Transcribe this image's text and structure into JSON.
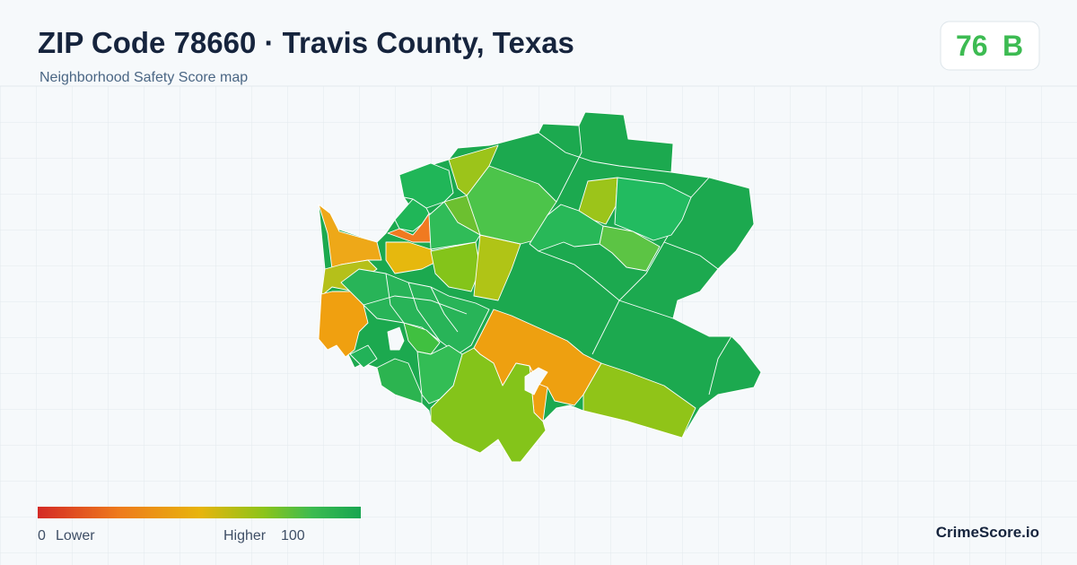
{
  "header": {
    "title": "ZIP Code 78660 · Travis County, Texas",
    "subtitle": "Neighborhood Safety Score map"
  },
  "badge": {
    "score": 76,
    "grade": "B"
  },
  "legend": {
    "min": 0,
    "min_label": "Lower",
    "max_label": "Higher",
    "max": 100
  },
  "footer": {
    "brand": "CrimeScore.io"
  }
}
